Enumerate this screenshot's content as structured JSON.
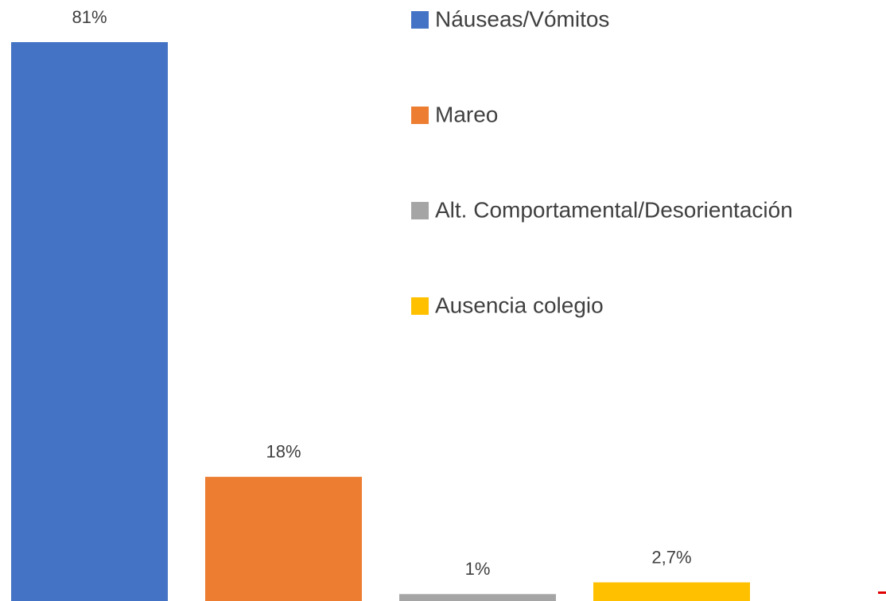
{
  "chart_data": {
    "type": "bar",
    "categories": [
      "Náuseas/Vómitos",
      "Mareo",
      "Alt. Comportamental/Desorientación",
      "Ausencia colegio"
    ],
    "values": [
      81,
      18,
      1,
      2.7
    ],
    "value_labels": [
      "81%",
      "18%",
      "1%",
      "2,7%"
    ],
    "colors": [
      "#4472c4",
      "#ed7d31",
      "#a5a5a5",
      "#ffc000"
    ],
    "legend": "right"
  }
}
